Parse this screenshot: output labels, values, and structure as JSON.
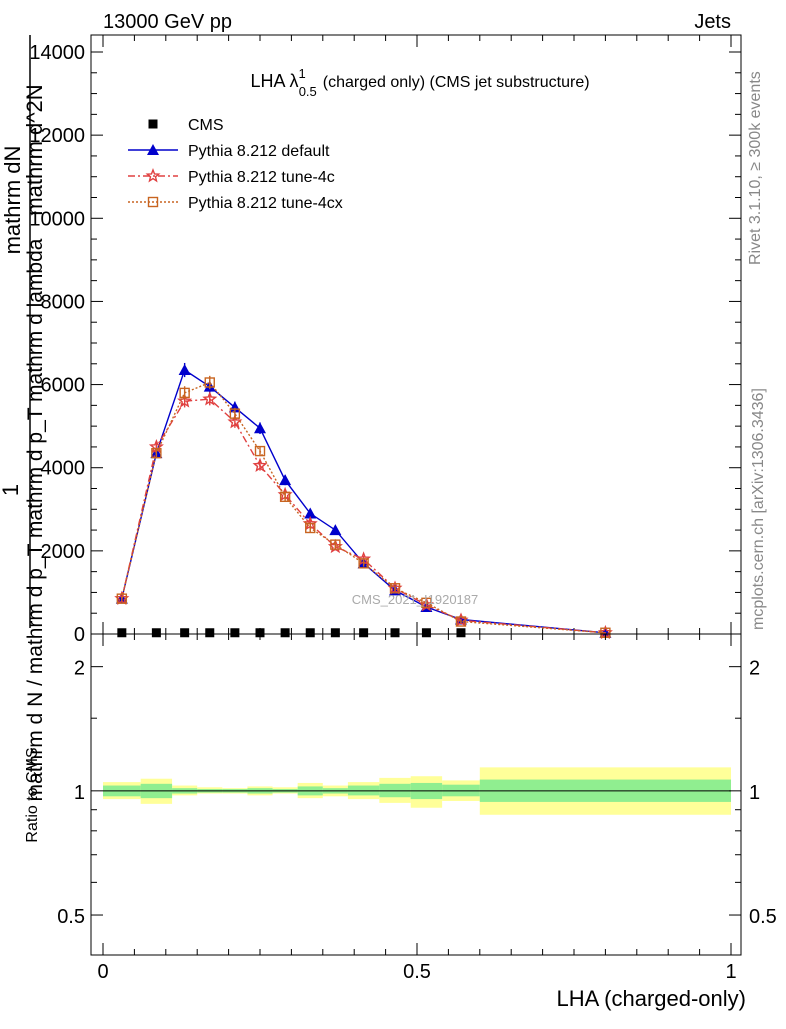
{
  "header": {
    "energy": "13000 GeV pp",
    "category": "Jets",
    "rivet": "Rivet 3.1.10, ≥ 300k events",
    "mcplots": "mcplots.cern.ch [arXiv:1306.3436]",
    "watermark": "CMS_2021_I1920187"
  },
  "chart_data": [
    {
      "type": "scatter",
      "title": "LHA λ¹₀.₅ (charged only) (CMS jet substructure)",
      "title_main": "LHA λ",
      "title_sup": "1",
      "title_sub": "0.5",
      "title_rest": "(charged only) (CMS jet substructure)",
      "ylabel_numerator_top": "1",
      "ylabel_numerator": "mathrm d^2N",
      "ylabel_denominator": "mathrm d N / mathrm d p_T mathrm d p_T mathrm d lambda",
      "ylabel_numerator_b": "mathrm dN",
      "xlabel": "",
      "xlim": [
        0,
        1
      ],
      "ylim": [
        0,
        14000
      ],
      "yticks": [
        "0",
        "2000",
        "4000",
        "6000",
        "8000",
        "10000",
        "12000",
        "14000"
      ],
      "ytick_values": [
        0,
        2000,
        4000,
        6000,
        8000,
        10000,
        12000,
        14000
      ],
      "legend_position": "top-left",
      "x": [
        0.03,
        0.085,
        0.13,
        0.17,
        0.21,
        0.25,
        0.29,
        0.33,
        0.37,
        0.415,
        0.465,
        0.515,
        0.57,
        0.8
      ],
      "series": [
        {
          "name": "CMS",
          "color": "#000000",
          "marker": "square",
          "x": [
            0.03,
            0.085,
            0.13,
            0.17,
            0.21,
            0.25,
            0.29,
            0.33,
            0.37,
            0.415,
            0.465,
            0.515,
            0.57
          ],
          "values": [
            30,
            30,
            30,
            30,
            30,
            30,
            30,
            30,
            30,
            30,
            30,
            30,
            30
          ]
        },
        {
          "name": "Pythia 8.212 default",
          "color": "#0000cc",
          "marker": "triangle",
          "line": "solid",
          "values": [
            850,
            4350,
            6350,
            5950,
            5450,
            4950,
            3700,
            2900,
            2500,
            1700,
            1050,
            650,
            350,
            30
          ],
          "errors": [
            60,
            120,
            170,
            150,
            140,
            140,
            120,
            110,
            100,
            80,
            60,
            50,
            40,
            10
          ]
        },
        {
          "name": "Pythia 8.212 tune-4c",
          "color": "#e04040",
          "marker": "star",
          "line": "dashdot",
          "values": [
            850,
            4500,
            5600,
            5650,
            5100,
            4050,
            3350,
            2650,
            2100,
            1800,
            1100,
            700,
            330,
            30
          ],
          "errors": [
            60,
            120,
            150,
            150,
            140,
            120,
            110,
            100,
            90,
            80,
            60,
            50,
            40,
            10
          ]
        },
        {
          "name": "Pythia 8.212 tune-4cx",
          "color": "#c86420",
          "marker": "open-square",
          "line": "dotted",
          "values": [
            850,
            4350,
            5800,
            6050,
            5300,
            4400,
            3300,
            2550,
            2150,
            1700,
            1100,
            750,
            300,
            30
          ],
          "errors": [
            60,
            120,
            160,
            160,
            140,
            120,
            110,
            100,
            90,
            80,
            60,
            50,
            40,
            10
          ]
        }
      ]
    },
    {
      "type": "line",
      "ylabel": "Ratio to CMS",
      "xlabel": "LHA (charged-only)",
      "xlim": [
        0,
        1
      ],
      "ylim": [
        0.4,
        2.4
      ],
      "yscale": "log",
      "yticks": [
        "0.5",
        "1",
        "2"
      ],
      "ytick_values": [
        0.5,
        1,
        2
      ],
      "xticks": [
        "0",
        "0.5",
        "1"
      ],
      "xtick_values": [
        0,
        0.5,
        1
      ],
      "bins": [
        {
          "x0": 0.0,
          "x1": 0.06,
          "green": [
            0.97,
            1.03
          ],
          "yellow": [
            0.955,
            1.05
          ]
        },
        {
          "x0": 0.06,
          "x1": 0.11,
          "green": [
            0.96,
            1.04
          ],
          "yellow": [
            0.93,
            1.07
          ]
        },
        {
          "x0": 0.11,
          "x1": 0.15,
          "green": [
            0.985,
            1.015
          ],
          "yellow": [
            0.975,
            1.03
          ]
        },
        {
          "x0": 0.15,
          "x1": 0.19,
          "green": [
            0.99,
            1.01
          ],
          "yellow": [
            0.985,
            1.02
          ]
        },
        {
          "x0": 0.19,
          "x1": 0.23,
          "green": [
            0.99,
            1.01
          ],
          "yellow": [
            0.985,
            1.015
          ]
        },
        {
          "x0": 0.23,
          "x1": 0.27,
          "green": [
            0.985,
            1.015
          ],
          "yellow": [
            0.975,
            1.025
          ]
        },
        {
          "x0": 0.27,
          "x1": 0.31,
          "green": [
            0.99,
            1.01
          ],
          "yellow": [
            0.985,
            1.02
          ]
        },
        {
          "x0": 0.31,
          "x1": 0.35,
          "green": [
            0.975,
            1.025
          ],
          "yellow": [
            0.96,
            1.045
          ]
        },
        {
          "x0": 0.35,
          "x1": 0.39,
          "green": [
            0.985,
            1.015
          ],
          "yellow": [
            0.97,
            1.03
          ]
        },
        {
          "x0": 0.39,
          "x1": 0.44,
          "green": [
            0.975,
            1.03
          ],
          "yellow": [
            0.955,
            1.05
          ]
        },
        {
          "x0": 0.44,
          "x1": 0.49,
          "green": [
            0.965,
            1.04
          ],
          "yellow": [
            0.935,
            1.075
          ]
        },
        {
          "x0": 0.49,
          "x1": 0.54,
          "green": [
            0.955,
            1.045
          ],
          "yellow": [
            0.91,
            1.085
          ]
        },
        {
          "x0": 0.54,
          "x1": 0.6,
          "green": [
            0.97,
            1.035
          ],
          "yellow": [
            0.945,
            1.06
          ]
        },
        {
          "x0": 0.6,
          "x1": 1.0,
          "green": [
            0.94,
            1.065
          ],
          "yellow": [
            0.875,
            1.14
          ]
        }
      ],
      "band_colors": {
        "green": "#90ee90",
        "yellow": "#ffff99"
      },
      "reference": 1
    }
  ]
}
